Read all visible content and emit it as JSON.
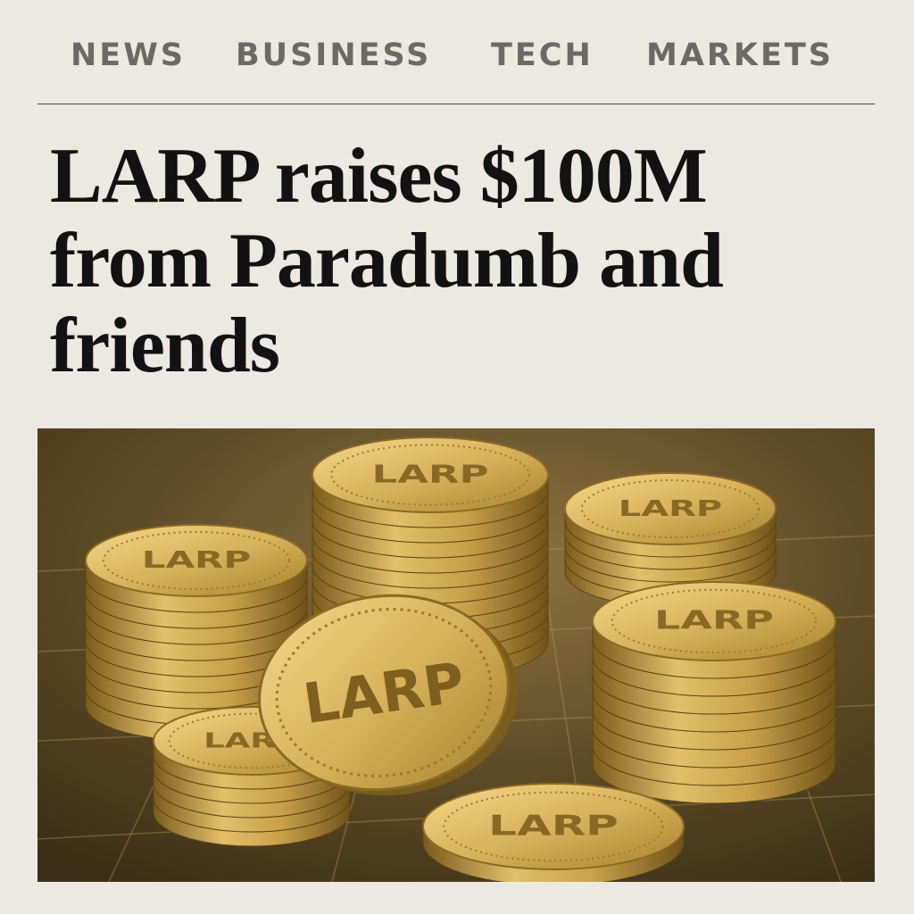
{
  "nav": {
    "items": [
      {
        "label": "NEWS"
      },
      {
        "label": "BUSINESS"
      },
      {
        "label": "TECH"
      },
      {
        "label": "MARKETS"
      }
    ]
  },
  "article": {
    "headline": "LARP raises $100M from Paradumb and friends"
  },
  "hero_image": {
    "coin_label": "LARP",
    "colors": {
      "gold_light": "#F4D98A",
      "gold_mid": "#C9A14A",
      "gold_dark": "#6E5318",
      "background": "#5C4A26"
    }
  }
}
